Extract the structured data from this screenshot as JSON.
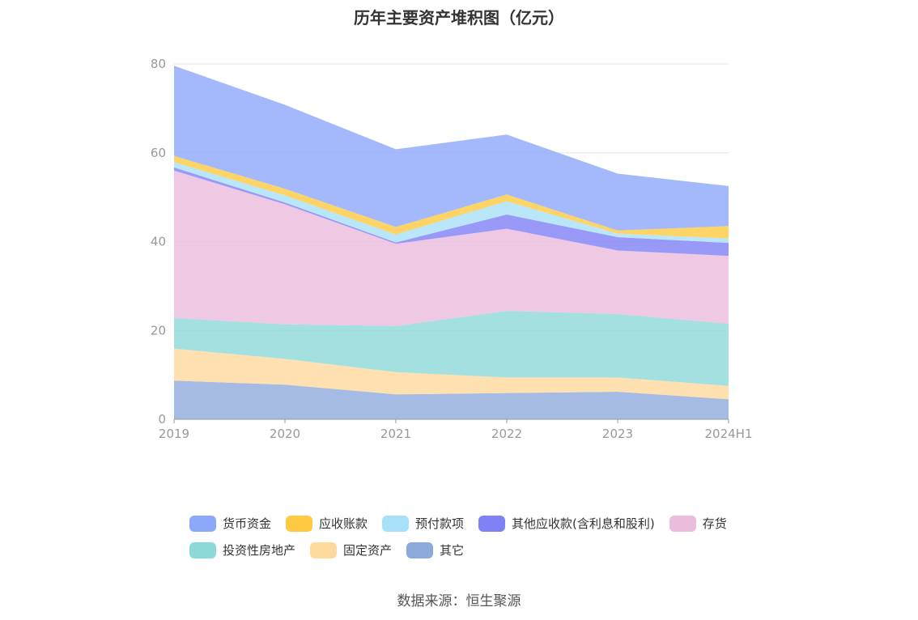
{
  "chart_data": {
    "type": "area",
    "stacked": true,
    "title": "历年主要资产堆积图（亿元）",
    "source": "数据来源：恒生聚源",
    "categories": [
      "2019",
      "2020",
      "2021",
      "2022",
      "2023",
      "2024H1"
    ],
    "ylim": [
      0,
      80
    ],
    "yticks": [
      "0",
      "20",
      "40",
      "60",
      "80"
    ],
    "grid": true,
    "legend_position": "bottom",
    "series": [
      {
        "name": "其它",
        "color": "#8eaadc",
        "values": [
          8.7,
          7.8,
          5.6,
          5.9,
          6.2,
          4.5
        ]
      },
      {
        "name": "固定资产",
        "color": "#ffd89e",
        "values": [
          7.2,
          5.8,
          5.0,
          3.5,
          3.2,
          3.0
        ]
      },
      {
        "name": "投资性房地产",
        "color": "#8dd8d8",
        "values": [
          6.9,
          7.8,
          10.4,
          15.0,
          14.3,
          14.0
        ]
      },
      {
        "name": "存货",
        "color": "#ebbcdc",
        "values": [
          33.2,
          27.0,
          18.5,
          18.5,
          14.3,
          15.3
        ]
      },
      {
        "name": "其他应收款(含利息和股利)",
        "color": "#8081f5",
        "values": [
          0.7,
          0.4,
          0.3,
          3.2,
          3.0,
          2.9
        ]
      },
      {
        "name": "预付款项",
        "color": "#a7e0f8",
        "values": [
          1.2,
          1.6,
          1.8,
          3.0,
          0.8,
          1.0
        ]
      },
      {
        "name": "应收账款",
        "color": "#ffc941",
        "values": [
          1.4,
          1.5,
          1.7,
          1.5,
          0.7,
          2.8
        ]
      },
      {
        "name": "货币资金",
        "color": "#8da8fa",
        "values": [
          20.3,
          18.9,
          17.5,
          13.5,
          12.8,
          9.0
        ]
      }
    ]
  },
  "legend": {
    "rows": [
      [
        {
          "label": "货币资金",
          "color": "#8da8fa"
        },
        {
          "label": "应收账款",
          "color": "#ffc941"
        },
        {
          "label": "预付款项",
          "color": "#a7e0f8"
        },
        {
          "label": "其他应收款(含利息和股利)",
          "color": "#8081f5"
        },
        {
          "label": "存货",
          "color": "#ebbcdc"
        }
      ],
      [
        {
          "label": "投资性房地产",
          "color": "#8dd8d8"
        },
        {
          "label": "固定资产",
          "color": "#ffd89e"
        },
        {
          "label": "其它",
          "color": "#8eaadc"
        }
      ]
    ]
  }
}
